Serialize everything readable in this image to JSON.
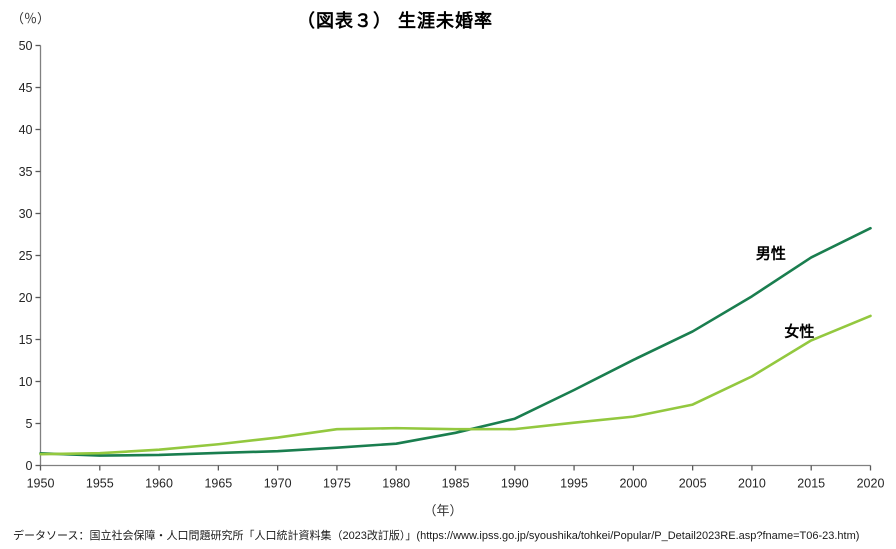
{
  "page": {
    "source": "データソース：国立社会保障・人口問題研究所「人口統計資料集（2023改訂版）」(https://www.ipss.go.jp/syoushika/tohkei/Popular/P_Detail2023RE.asp?fname=T06-23.htm)"
  },
  "chart_data": {
    "type": "line",
    "title": "（図表３） 生涯未婚率",
    "x_label": "（年）",
    "y_label": "（％）",
    "x": [
      1950,
      1955,
      1960,
      1965,
      1970,
      1975,
      1980,
      1985,
      1990,
      1995,
      2000,
      2005,
      2010,
      2015,
      2020
    ],
    "xlim": [
      1950,
      2020
    ],
    "ylim": [
      0,
      50
    ],
    "y_ticks": [
      0,
      5,
      10,
      15,
      20,
      25,
      30,
      35,
      40,
      45,
      50
    ],
    "grid": false,
    "legend": "inline-annotations",
    "axis_color": "#808080",
    "tick_color": "#595959",
    "series": [
      {
        "name": "男性",
        "color": "#1a7e4f",
        "values": [
          1.45,
          1.18,
          1.26,
          1.5,
          1.7,
          2.12,
          2.6,
          3.89,
          5.57,
          8.99,
          12.57,
          15.96,
          20.14,
          24.77,
          28.25
        ]
      },
      {
        "name": "女性",
        "color": "#93c83f",
        "values": [
          1.35,
          1.47,
          1.88,
          2.53,
          3.33,
          4.32,
          4.45,
          4.32,
          4.33,
          5.1,
          5.82,
          7.25,
          10.61,
          14.89,
          17.81
        ]
      }
    ],
    "annotations": [
      {
        "text": "男性",
        "x": 2011.6,
        "y": 25.3
      },
      {
        "text": "女性",
        "x": 2014.0,
        "y": 16.0
      }
    ]
  }
}
